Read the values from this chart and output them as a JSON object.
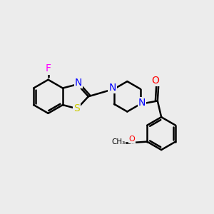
{
  "bg_color": "#ececec",
  "bond_color": "#000000",
  "bond_width": 1.8,
  "colors": {
    "C": "#000000",
    "N": "#0000ff",
    "O": "#ff0000",
    "S": "#cccc00",
    "F": "#ff00ff"
  },
  "font_size": 10
}
